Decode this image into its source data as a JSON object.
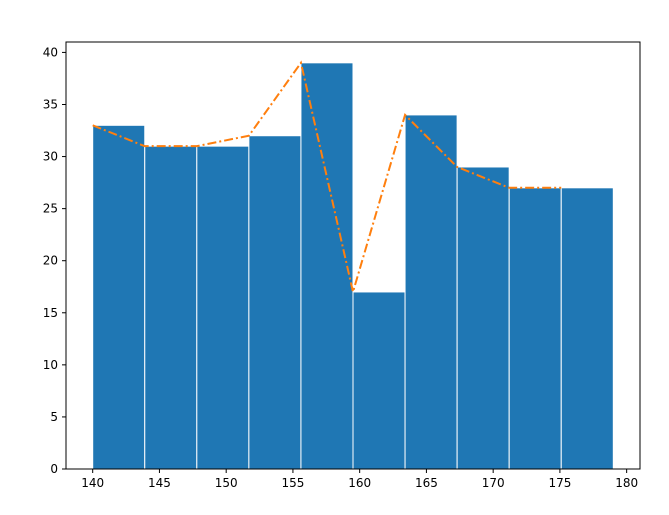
{
  "chart_data": {
    "type": "bar",
    "title": "",
    "xlabel": "",
    "ylabel": "",
    "xlim": [
      138,
      181
    ],
    "ylim": [
      0,
      41
    ],
    "grid": false,
    "bin_edges": [
      140,
      143.9,
      147.8,
      151.7,
      155.6,
      159.5,
      163.4,
      167.3,
      171.2,
      175.1,
      179
    ],
    "values": [
      33,
      31,
      31,
      32,
      39,
      17,
      34,
      29,
      27,
      27
    ],
    "line": {
      "x": [
        140,
        143.9,
        147.8,
        151.7,
        155.6,
        159.5,
        163.4,
        167.3,
        171.2,
        175.1
      ],
      "y": [
        33,
        31,
        31,
        32,
        39,
        17,
        34,
        29,
        27,
        27
      ]
    },
    "xticks": [
      140,
      145,
      150,
      155,
      160,
      165,
      170,
      175,
      180
    ],
    "yticks": [
      0,
      5,
      10,
      15,
      20,
      25,
      30,
      35,
      40
    ],
    "colors": {
      "bar": "#1f77b4",
      "bar_edge": "#ffffff",
      "line": "#ff7f0e"
    }
  }
}
